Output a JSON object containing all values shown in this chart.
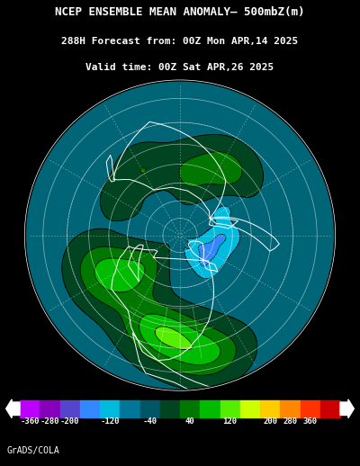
{
  "title_line1": "NCEP ENSEMBLE MEAN ANOMALY– 500mbZ(m)",
  "title_line2": "288H Forecast from: 00Z Mon APR,14 2025",
  "title_line3": "Valid time: 00Z Sat APR,26 2025",
  "credit": "GrADS/COLA",
  "bg_color": "#000000",
  "map_border_color": "#000000",
  "title_color": "#ffffff",
  "title_fontsize": 9.0,
  "subtitle_fontsize": 8.0,
  "cbar_colors": [
    "#bb00ff",
    "#8800bb",
    "#5544cc",
    "#3388ff",
    "#00bbdd",
    "#007799",
    "#005566",
    "#004422",
    "#007700",
    "#00bb00",
    "#55ee00",
    "#ccff00",
    "#ffcc00",
    "#ff8800",
    "#ff3300",
    "#cc0000"
  ],
  "cbar_labels": [
    "-360",
    "-280",
    "-200",
    "-120",
    "-40",
    "40",
    "120",
    "200",
    "280",
    "360"
  ],
  "map_bg_color": "#006666",
  "contour_levels": [
    -500,
    -360,
    -280,
    -200,
    -120,
    -40,
    40,
    120,
    200,
    280,
    360,
    500
  ],
  "fill_colors": [
    "#bb00ff",
    "#8800bb",
    "#5544cc",
    "#3388ff",
    "#00bbdd",
    "#006677",
    "#004422",
    "#007700",
    "#00bb00",
    "#55ee00",
    "#ccff00"
  ]
}
